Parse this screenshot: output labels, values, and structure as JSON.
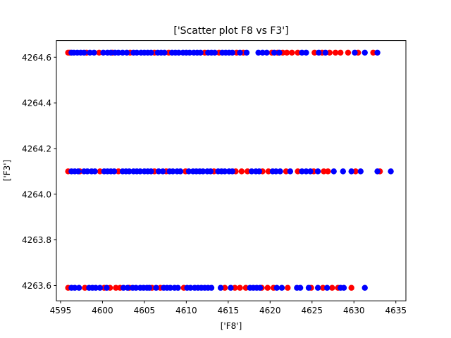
{
  "chart_data": {
    "type": "scatter",
    "title": "['Scatter plot F8 vs F3']",
    "xlabel": "['F8']",
    "ylabel": "['F3']",
    "xlim": [
      4594.5,
      4636.2
    ],
    "ylim": [
      4263.533,
      4264.673
    ],
    "xticks": [
      4595,
      4600,
      4605,
      4610,
      4615,
      4620,
      4625,
      4630,
      4635
    ],
    "yticks": [
      4263.6,
      4263.8,
      4264.0,
      4264.2,
      4264.4,
      4264.6
    ],
    "xtick_labels": [
      "4595",
      "4600",
      "4605",
      "4610",
      "4615",
      "4620",
      "4625",
      "4630",
      "4635"
    ],
    "ytick_labels": [
      "4263.6",
      "4263.8",
      "4264.0",
      "4264.2",
      "4264.4",
      "4264.6"
    ],
    "grid": false,
    "series": [
      {
        "color": "#ff0000",
        "points": [
          {
            "y": 4264.62,
            "x": [
              4595.9,
              4596.1,
              4598.1,
              4599.6,
              4601.2,
              4603.3,
              4606.2,
              4607.9,
              4612.2,
              4613.9,
              4616.0,
              4616.8,
              4620.2,
              4620.9,
              4621.5,
              4622.0,
              4622.6,
              4623.3,
              4625.3,
              4626.2,
              4627.1,
              4627.8,
              4628.4,
              4629.3,
              4630.5,
              4632.3
            ]
          },
          {
            "y": 4264.1,
            "x": [
              4595.9,
              4597.3,
              4599.7,
              4601.9,
              4606.2,
              4607.6,
              4609.9,
              4613.3,
              4615.9,
              4616.6,
              4617.3,
              4619.1,
              4619.8,
              4621.9,
              4623.3,
              4625.2,
              4626.4,
              4626.9,
              4630.2,
              4633.1
            ]
          },
          {
            "y": 4263.59,
            "x": [
              4595.9,
              4597.9,
              4600.2,
              4600.9,
              4601.6,
              4602.1,
              4603.2,
              4605.9,
              4606.9,
              4609.7,
              4614.6,
              4615.8,
              4616.4,
              4617.1,
              4619.0,
              4619.7,
              4620.4,
              4622.1,
              4624.9,
              4626.3,
              4627.4,
              4628.1,
              4629.7
            ]
          }
        ]
      },
      {
        "color": "#0000ff",
        "points": [
          {
            "y": 4264.62,
            "x": [
              4596.3,
              4596.6,
              4597.0,
              4597.4,
              4597.8,
              4598.5,
              4599.0,
              4600.1,
              4600.6,
              4601.0,
              4601.5,
              4601.9,
              4602.4,
              4602.9,
              4603.7,
              4604.1,
              4604.6,
              4605.0,
              4605.4,
              4605.8,
              4606.6,
              4607.0,
              4607.4,
              4608.3,
              4608.7,
              4609.1,
              4609.6,
              4610.0,
              4610.4,
              4610.9,
              4611.3,
              4611.7,
              4612.6,
              4613.0,
              4613.4,
              4614.3,
              4614.7,
              4615.1,
              4615.5,
              4616.4,
              4617.2,
              4618.6,
              4619.1,
              4619.6,
              4620.5,
              4621.1,
              4623.8,
              4624.3,
              4625.8,
              4626.6,
              4630.1,
              4631.3,
              4632.8
            ]
          },
          {
            "y": 4264.1,
            "x": [
              4596.3,
              4596.7,
              4597.1,
              4597.8,
              4598.2,
              4598.7,
              4599.1,
              4600.2,
              4600.6,
              4601.0,
              4601.4,
              4602.4,
              4602.8,
              4603.2,
              4603.7,
              4604.1,
              4604.5,
              4605.0,
              4605.4,
              4605.8,
              4606.7,
              4607.2,
              4608.0,
              4608.4,
              4608.9,
              4609.3,
              4610.3,
              4610.8,
              4611.2,
              4611.6,
              4612.0,
              4612.5,
              4612.9,
              4613.8,
              4614.2,
              4614.6,
              4615.1,
              4615.5,
              4617.8,
              4618.3,
              4618.7,
              4620.3,
              4620.7,
              4621.2,
              4622.4,
              4623.8,
              4624.3,
              4624.8,
              4625.7,
              4627.6,
              4628.7,
              4629.7,
              4630.8,
              4632.8,
              4634.4
            ]
          },
          {
            "y": 4263.59,
            "x": [
              4596.3,
              4596.7,
              4597.2,
              4598.4,
              4598.8,
              4599.2,
              4599.7,
              4600.5,
              4602.5,
              4603.0,
              4603.6,
              4604.0,
              4604.5,
              4604.9,
              4605.3,
              4605.6,
              4606.4,
              4607.3,
              4607.7,
              4608.1,
              4608.6,
              4609.0,
              4610.1,
              4610.5,
              4611.0,
              4611.4,
              4611.8,
              4612.2,
              4612.6,
              4613.0,
              4614.1,
              4615.3,
              4617.6,
              4618.0,
              4618.4,
              4618.8,
              4620.8,
              4621.4,
              4623.2,
              4623.6,
              4624.6,
              4625.7,
              4626.8,
              4628.4,
              4628.8,
              4631.3
            ]
          }
        ]
      }
    ]
  }
}
